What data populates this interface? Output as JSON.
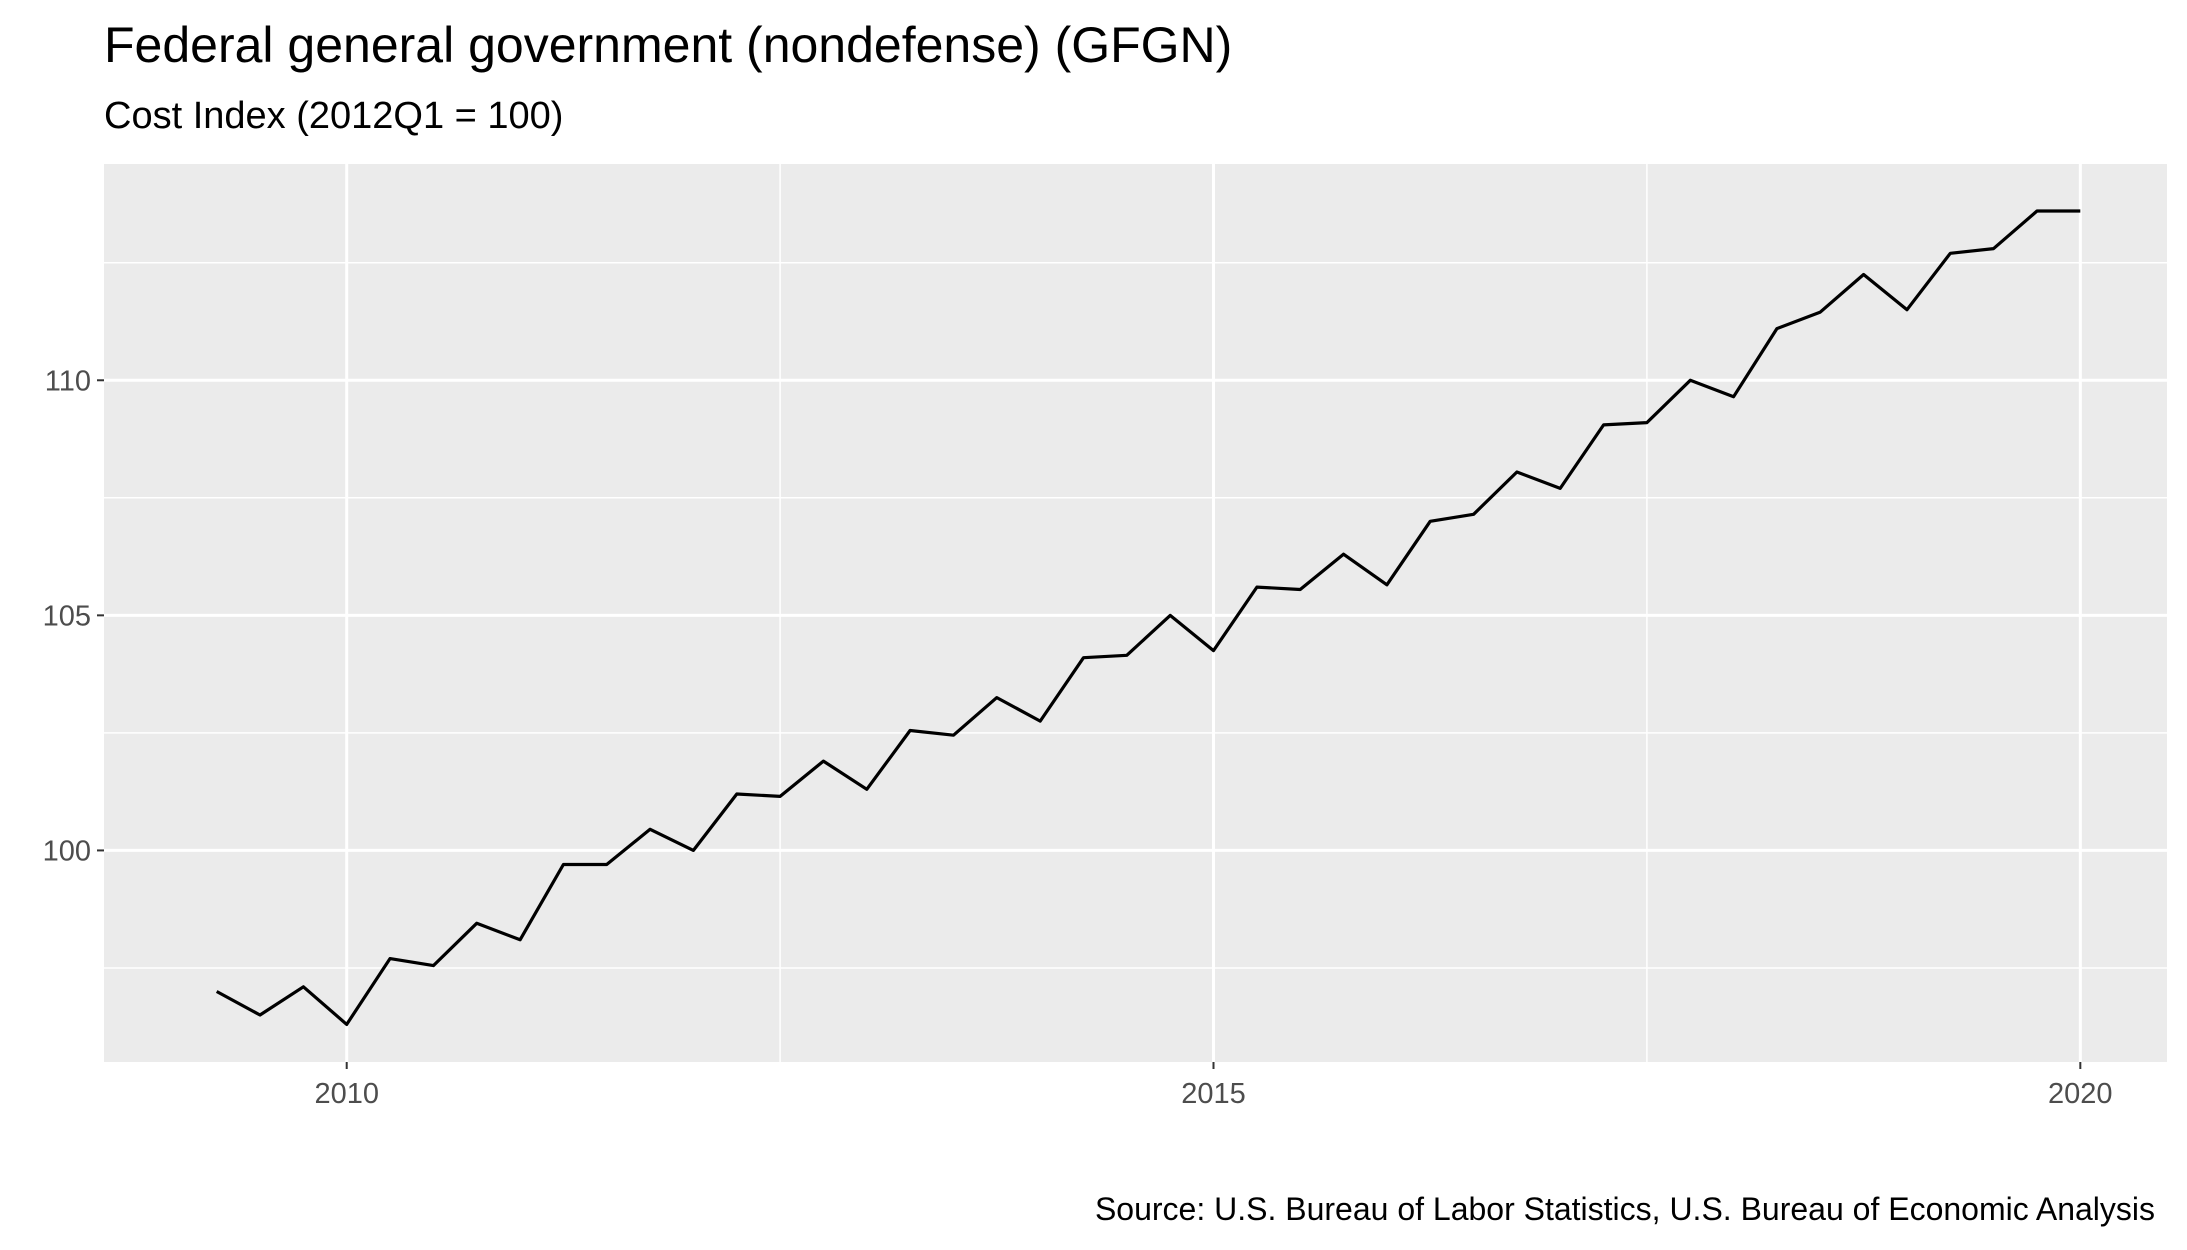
{
  "chart_data": {
    "type": "line",
    "title": "Federal general government (nondefense) (GFGN)",
    "subtitle": "Cost Index (2012Q1 = 100)",
    "caption": "Source: U.S. Bureau of Labor Statistics, U.S. Bureau of Economic Analysis",
    "xlabel": "",
    "ylabel": "",
    "xlim": [
      2008.6,
      2020.5
    ],
    "ylim": [
      95.5,
      114.6
    ],
    "x_ticks": [
      {
        "value": 2010,
        "label": "2010"
      },
      {
        "value": 2015,
        "label": "2015"
      },
      {
        "value": 2020,
        "label": "2020"
      }
    ],
    "y_ticks": [
      {
        "value": 100,
        "label": "100"
      },
      {
        "value": 105,
        "label": "105"
      },
      {
        "value": 110,
        "label": "110"
      }
    ],
    "x_minor_breaks": [
      2012.5,
      2017.5
    ],
    "y_minor_breaks": [
      97.5,
      102.5,
      107.5,
      112.5
    ],
    "grid": true,
    "series": [
      {
        "color": "#000000",
        "x": [
          2009.25,
          2009.5,
          2009.75,
          2010.0,
          2010.25,
          2010.5,
          2010.75,
          2011.0,
          2011.25,
          2011.5,
          2011.75,
          2012.0,
          2012.25,
          2012.5,
          2012.75,
          2013.0,
          2013.25,
          2013.5,
          2013.75,
          2014.0,
          2014.25,
          2014.5,
          2014.75,
          2015.0,
          2015.25,
          2015.5,
          2015.75,
          2016.0,
          2016.25,
          2016.5,
          2016.75,
          2017.0,
          2017.25,
          2017.5,
          2017.75,
          2018.0,
          2018.25,
          2018.5,
          2018.75,
          2019.0,
          2019.25,
          2019.5,
          2019.75,
          2020.0
        ],
        "values": [
          97.0,
          96.5,
          97.1,
          96.3,
          97.7,
          97.55,
          98.45,
          98.1,
          99.7,
          99.7,
          100.45,
          100.0,
          101.2,
          101.15,
          101.9,
          101.3,
          102.55,
          102.45,
          103.25,
          102.75,
          104.1,
          104.15,
          105.0,
          104.25,
          105.6,
          105.55,
          106.3,
          105.65,
          107.0,
          107.15,
          108.05,
          107.7,
          109.05,
          109.1,
          110.0,
          109.65,
          111.1,
          111.45,
          112.25,
          111.5,
          112.7,
          112.8,
          113.6,
          113.6
        ]
      }
    ]
  }
}
